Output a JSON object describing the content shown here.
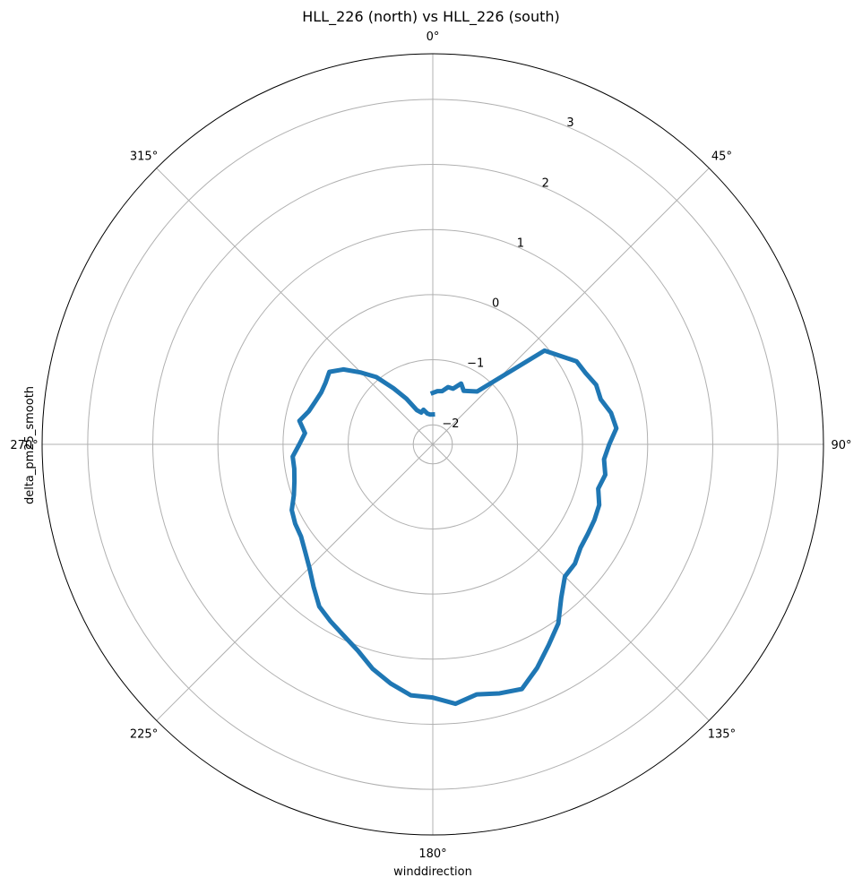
{
  "chart_data": {
    "type": "line",
    "projection": "polar",
    "title": "HLL_226 (north) vs HLL_226 (south)",
    "xlabel": "winddirection",
    "ylabel": "delta_pm25_smooth",
    "theta_zero_location": "N",
    "theta_direction": "clockwise",
    "theta_ticks": [
      "0°",
      "45°",
      "90°",
      "135°",
      "180°",
      "225°",
      "270°",
      "315°"
    ],
    "theta_tick_values": [
      0,
      45,
      90,
      135,
      180,
      225,
      270,
      315
    ],
    "r_ticks": [
      "−2",
      "−1",
      "0",
      "1",
      "2",
      "3"
    ],
    "r_tick_values": [
      -2,
      -1,
      0,
      1,
      2,
      3
    ],
    "rlim": [
      -2.3,
      3.7
    ],
    "grid": true,
    "series": [
      {
        "color": "#1f77b4",
        "x": [
          0,
          5,
          10,
          15,
          20,
          25,
          30,
          40,
          50,
          60,
          65,
          70,
          75,
          80,
          85,
          90,
          95,
          100,
          105,
          110,
          115,
          120,
          125,
          130,
          135,
          140,
          145,
          150,
          155,
          160,
          165,
          170,
          175,
          180,
          185,
          190,
          195,
          200,
          205,
          210,
          215,
          220,
          225,
          230,
          235,
          240,
          245,
          250,
          255,
          260,
          265,
          270,
          275,
          280,
          285,
          290,
          295,
          300,
          305,
          310,
          315,
          320,
          325,
          330,
          335,
          340,
          345,
          350,
          355,
          360
        ],
        "values": [
          -1.51,
          -1.48,
          -1.47,
          -1.39,
          -1.39,
          -1.27,
          -1.35,
          -1.24,
          -0.06,
          0.25,
          0.29,
          0.37,
          0.37,
          0.48,
          0.53,
          0.41,
          0.34,
          0.39,
          0.33,
          0.42,
          0.44,
          0.45,
          0.47,
          0.55,
          0.57,
          0.77,
          1.06,
          1.26,
          1.49,
          1.7,
          1.66,
          1.6,
          1.7,
          1.59,
          1.57,
          1.43,
          1.27,
          1.07,
          0.94,
          0.84,
          0.74,
          0.55,
          0.38,
          0.26,
          0.17,
          0.14,
          0.09,
          -0.03,
          -0.1,
          -0.14,
          -0.14,
          -0.25,
          -0.33,
          -0.22,
          -0.33,
          -0.38,
          -0.41,
          -0.4,
          -0.36,
          -0.51,
          -0.74,
          -0.95,
          -1.25,
          -1.49,
          -1.72,
          -1.78,
          -1.75,
          -1.82,
          -1.84,
          -1.84
        ]
      }
    ]
  }
}
